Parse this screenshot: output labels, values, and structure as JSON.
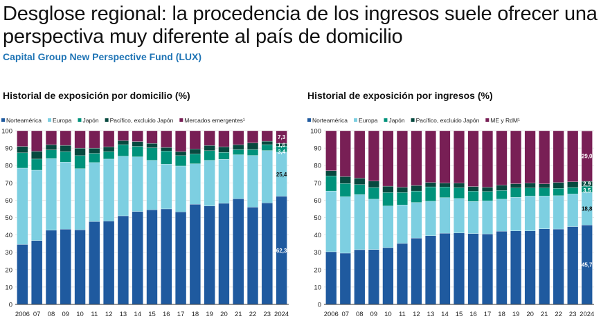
{
  "header": {
    "title": "Desglose regional: la procedencia de los ingresos suele ofrecer una perspectiva muy diferente al país de domicilio",
    "subtitle": "Capital Group New Perspective Fund (LUX)"
  },
  "colors": {
    "Norteamérica": "#1f5a9f",
    "Europa": "#7dcfe1",
    "Japón": "#00927b",
    "Pacífico": "#07493f",
    "EM": "#781f55"
  },
  "chart_data": [
    {
      "type": "bar",
      "stacked": true,
      "title": "Historial de exposición por domicilio (%)",
      "ylim": [
        0,
        100
      ],
      "yticks": [
        0,
        10,
        20,
        30,
        40,
        50,
        60,
        70,
        80,
        90,
        100
      ],
      "grid": true,
      "legend": "top",
      "categories": [
        "2006",
        "07",
        "08",
        "09",
        "10",
        "11",
        "12",
        "13",
        "14",
        "15",
        "16",
        "17",
        "18",
        "19",
        "20",
        "21",
        "22",
        "23",
        "2024"
      ],
      "series": [
        {
          "name": "Norteamérica",
          "values": [
            34.5,
            36.8,
            42.7,
            43.3,
            43.0,
            47.7,
            48.0,
            51.0,
            53.5,
            54.5,
            55.0,
            53.3,
            57.7,
            56.7,
            58.2,
            60.8,
            56.0,
            58.5,
            62.3
          ]
        },
        {
          "name": "Europa",
          "values": [
            44.0,
            40.5,
            41.3,
            38.7,
            35.2,
            34.0,
            35.7,
            34.3,
            31.5,
            28.5,
            25.8,
            26.4,
            23.3,
            26.3,
            25.4,
            25.4,
            29.8,
            30.1,
            25.4
          ]
        },
        {
          "name": "Japón",
          "values": [
            8.8,
            6.4,
            5.0,
            6.0,
            7.5,
            5.3,
            4.3,
            6.7,
            6.0,
            7.2,
            7.5,
            6.0,
            5.5,
            5.5,
            4.0,
            3.0,
            3.4,
            3.4,
            3.4
          ]
        },
        {
          "name": "Pacífico, excluido Japón",
          "values": [
            3.7,
            4.5,
            3.0,
            3.6,
            4.3,
            3.0,
            2.8,
            2.3,
            2.8,
            2.5,
            2.1,
            2.3,
            3.0,
            3.0,
            3.2,
            2.8,
            3.8,
            2.0,
            1.6
          ]
        },
        {
          "name": "Mercados emergentes¹",
          "values": [
            9.0,
            11.8,
            8.0,
            8.4,
            10.0,
            10.0,
            9.2,
            5.7,
            6.2,
            7.3,
            9.6,
            12.0,
            10.5,
            8.5,
            9.2,
            8.0,
            7.0,
            6.0,
            7.3
          ]
        }
      ],
      "data_labels": [
        "62,3",
        "25,4",
        "3,4",
        "1,6",
        "7,3"
      ]
    },
    {
      "type": "bar",
      "stacked": true,
      "title": "Historial de exposición por ingresos (%)",
      "ylim": [
        0,
        100
      ],
      "yticks": [
        0,
        10,
        20,
        30,
        40,
        50,
        60,
        70,
        80,
        90,
        100
      ],
      "grid": true,
      "legend": "top",
      "categories": [
        "2006",
        "07",
        "08",
        "09",
        "10",
        "11",
        "12",
        "13",
        "14",
        "15",
        "16",
        "17",
        "18",
        "19",
        "20",
        "21",
        "22",
        "23",
        "2024"
      ],
      "series": [
        {
          "name": "Norteamérica",
          "values": [
            30.3,
            29.5,
            31.5,
            31.6,
            32.7,
            35.1,
            38.2,
            39.5,
            41.0,
            41.1,
            40.8,
            40.6,
            42.1,
            42.3,
            42.3,
            43.5,
            43.4,
            44.8,
            45.7
          ]
        },
        {
          "name": "Europa",
          "values": [
            35.0,
            32.5,
            31.7,
            29.0,
            24.0,
            22.2,
            20.5,
            19.9,
            20.5,
            19.9,
            18.5,
            19.0,
            18.5,
            19.4,
            20.1,
            18.9,
            19.2,
            18.8,
            18.8
          ]
        },
        {
          "name": "Japón",
          "values": [
            8.7,
            7.6,
            5.8,
            6.7,
            7.7,
            7.1,
            6.6,
            8.3,
            6.1,
            6.2,
            5.9,
            5.4,
            5.0,
            5.3,
            4.6,
            4.6,
            4.2,
            3.7,
            3.5
          ]
        },
        {
          "name": "Pacífico, excluido Japón",
          "values": [
            3.0,
            4.0,
            3.7,
            3.7,
            3.7,
            3.1,
            3.2,
            2.5,
            2.3,
            2.6,
            2.7,
            2.5,
            3.0,
            2.5,
            2.8,
            2.4,
            3.4,
            3.3,
            2.9
          ]
        },
        {
          "name": "ME y RdM¹",
          "values": [
            23.0,
            26.4,
            27.3,
            29.0,
            31.9,
            32.5,
            31.5,
            29.8,
            30.1,
            30.2,
            32.1,
            32.5,
            31.4,
            30.5,
            30.2,
            30.6,
            29.8,
            29.4,
            29.0
          ]
        }
      ],
      "data_labels": [
        "45,7",
        "18,8",
        "3,5",
        "2,9",
        "29,0"
      ]
    }
  ]
}
